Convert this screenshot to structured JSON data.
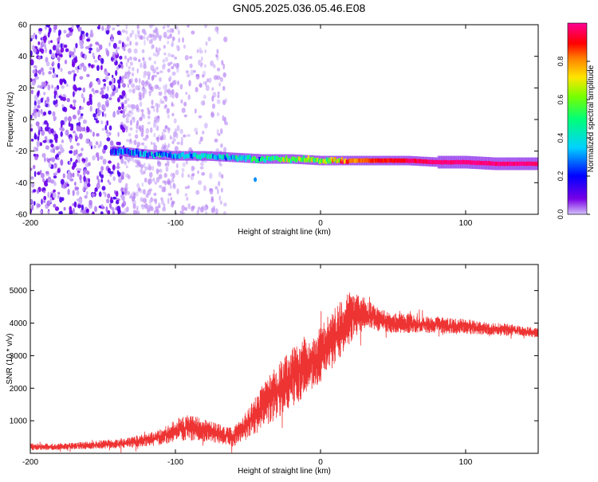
{
  "title": "GN05.2025.036.05.46.E08",
  "chart_data": [
    {
      "type": "heatmap",
      "xlabel": "Height of straight line (km)",
      "ylabel": "Frequency (Hz)",
      "xlim": [
        -200,
        150
      ],
      "ylim": [
        -60,
        60
      ],
      "xticks": [
        -200,
        -100,
        0,
        100
      ],
      "yticks": [
        -60,
        -40,
        -20,
        0,
        20,
        40,
        60
      ],
      "grid": false,
      "colorbar": {
        "label": "Normalized spectral amplitude",
        "range": [
          0,
          1
        ],
        "ticks": [
          "0.0",
          "0.2",
          "0.4",
          "0.6",
          "0.8"
        ]
      },
      "signal_band": {
        "x": [
          -140,
          -120,
          -100,
          -80,
          -60,
          -40,
          -20,
          0,
          20,
          40,
          60,
          80,
          100,
          120,
          150
        ],
        "frequency": [
          -20,
          -22,
          -23,
          -23,
          -24,
          -25,
          -25,
          -26,
          -26,
          -26,
          -26,
          -27,
          -27,
          -28,
          -28
        ],
        "amplitude": [
          0.2,
          0.3,
          0.35,
          0.35,
          0.4,
          0.45,
          0.55,
          0.65,
          0.8,
          0.9,
          0.95,
          0.98,
          1.0,
          1.0,
          1.0
        ]
      }
    },
    {
      "type": "line",
      "xlabel": "Height of straight line (km)",
      "ylabel": "SNR (10 * v/v)",
      "xlim": [
        -200,
        150
      ],
      "ylim": [
        0,
        5800
      ],
      "xticks": [
        -200,
        -100,
        0,
        100
      ],
      "yticks": [
        1000,
        2000,
        3000,
        4000,
        5000
      ],
      "grid": false,
      "series": [
        {
          "color": "#ee3333",
          "x": [
            -200,
            -180,
            -160,
            -140,
            -120,
            -110,
            -100,
            -90,
            -80,
            -70,
            -60,
            -50,
            -40,
            -30,
            -20,
            -10,
            0,
            10,
            20,
            30,
            40,
            50,
            60,
            70,
            80,
            90,
            100,
            110,
            120,
            130,
            140,
            150
          ],
          "y": [
            200,
            200,
            250,
            300,
            400,
            500,
            700,
            800,
            700,
            600,
            500,
            900,
            1400,
            1900,
            2300,
            2700,
            3000,
            3600,
            4200,
            4300,
            4100,
            4000,
            4000,
            3950,
            3950,
            3900,
            3900,
            3850,
            3800,
            3800,
            3750,
            3700
          ],
          "spread": [
            100,
            100,
            120,
            150,
            200,
            250,
            350,
            400,
            350,
            300,
            300,
            450,
            700,
            850,
            900,
            950,
            900,
            900,
            800,
            500,
            350,
            300,
            300,
            250,
            250,
            250,
            250,
            200,
            200,
            200,
            150,
            150
          ]
        }
      ]
    }
  ]
}
